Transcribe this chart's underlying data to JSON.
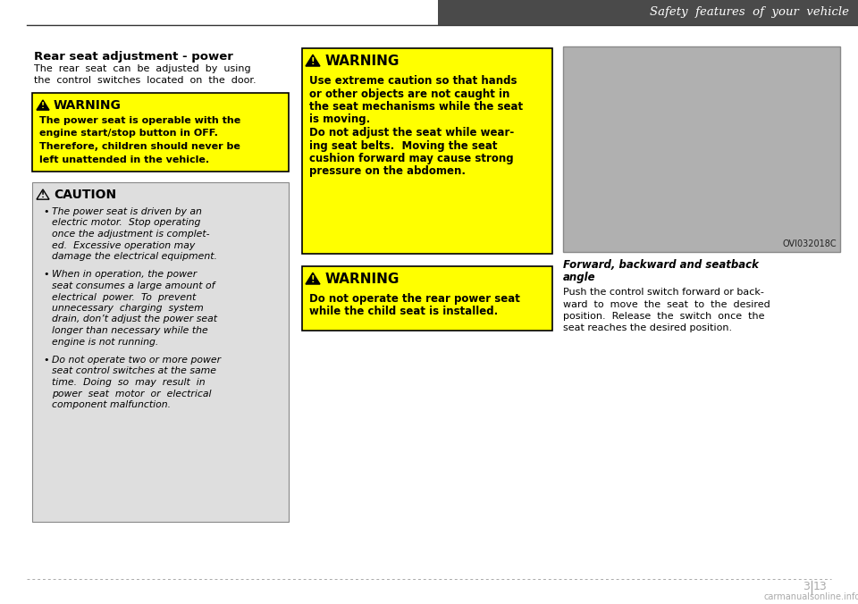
{
  "page_title": "Safety  features  of  your  vehicle",
  "page_num_left": "3",
  "page_num_right": "13",
  "watermark": "carmanualsonline.info",
  "header_bar_color": "#4a4a4a",
  "bg_color": "#ffffff",
  "section_title": "Rear seat adjustment - power",
  "section_intro_line1": "The  rear  seat  can  be  adjusted  by  using",
  "section_intro_line2": "the  control  switches  located  on  the  door.",
  "warning1_bg": "#ffff00",
  "warning1_border": "#000000",
  "warning1_title": "WARNING",
  "warning1_lines": [
    "The power seat is operable with the",
    "engine start/stop button in OFF.",
    "Therefore, children should never be",
    "left unattended in the vehicle."
  ],
  "caution_bg": "#dedede",
  "caution_border": "#888888",
  "caution_title": "CAUTION",
  "caution_bullet1_lines": [
    "The power seat is driven by an",
    "electric motor.  Stop operating",
    "once the adjustment is complet-",
    "ed.  Excessive operation may",
    "damage the electrical equipment."
  ],
  "caution_bullet2_lines": [
    "When in operation, the power",
    "seat consumes a large amount of",
    "electrical  power.  To  prevent",
    "unnecessary  charging  system",
    "drain, don’t adjust the power seat",
    "longer than necessary while the",
    "engine is not running."
  ],
  "caution_bullet3_lines": [
    "Do not operate two or more power",
    "seat control switches at the same",
    "time.  Doing  so  may  result  in",
    "power  seat  motor  or  electrical",
    "component malfunction."
  ],
  "warning2_bg": "#ffff00",
  "warning2_border": "#000000",
  "warning2_title": "WARNING",
  "warning2_lines": [
    "Use extreme caution so that hands",
    "or other objects are not caught in",
    "the seat mechanisms while the seat",
    "is moving.",
    "Do not adjust the seat while wear-",
    "ing seat belts.  Moving the seat",
    "cushion forward may cause strong",
    "pressure on the abdomen."
  ],
  "warning3_bg": "#ffff00",
  "warning3_border": "#000000",
  "warning3_title": "WARNING",
  "warning3_lines": [
    "Do not operate the rear power seat",
    "while the child seat is installed."
  ],
  "right_title_line1": "Forward, backward and seatback",
  "right_title_line2": "angle",
  "right_text_lines": [
    "Push the control switch forward or back-",
    "ward  to  move  the  seat  to  the  desired",
    "position.  Release  the  switch  once  the",
    "seat reaches the desired position."
  ],
  "image_label": "OVI032018C",
  "image_bg": "#b0b0b0"
}
